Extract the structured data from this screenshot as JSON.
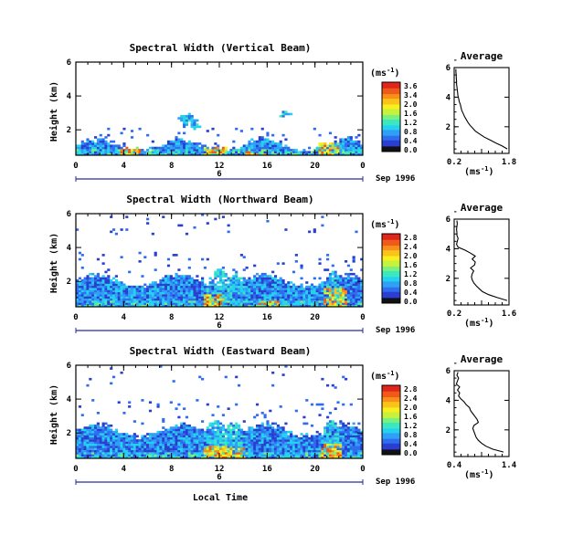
{
  "figure": {
    "xlabel": "Local Time",
    "date_label": "Sep 1996",
    "time_ticks": [
      "0",
      "4",
      "8",
      "12",
      "16",
      "20",
      "0"
    ],
    "day_labels": [
      "6",
      "6",
      "6"
    ],
    "colorbar_unit": "(ms",
    "colorbar_unit_sup": "-1",
    "colorbar_unit_close": ")",
    "avg_xunit": "(ms",
    "avg_xunit_sup": "-1",
    "avg_xunit_close": ")"
  },
  "palette": [
    "#1a1a6e",
    "#2a3fd0",
    "#2f6df0",
    "#2fa0f5",
    "#24d2f0",
    "#3be8c0",
    "#7cf07a",
    "#c6f23e",
    "#f5f01e",
    "#f9c31a",
    "#f78f1a",
    "#ef5a1a",
    "#e0261a"
  ],
  "chart_data": [
    {
      "type": "heatmap",
      "title": "Spectral Width (Vertical Beam)",
      "ylabel": "Height (km)",
      "xlim": [
        0,
        24
      ],
      "ylim": [
        0.5,
        6
      ],
      "yticks": [
        "6",
        "4",
        "2"
      ],
      "colorbar_ticks": [
        "3.6",
        "3.4",
        "2.0",
        "1.6",
        "1.2",
        "0.8",
        "0.4",
        "0.0"
      ],
      "colorbar_range": [
        0,
        3.6
      ],
      "profile": {
        "title": "Average",
        "xlim": [
          0.2,
          1.8
        ],
        "xticks": [
          "0.2",
          "1.8"
        ],
        "yticks": [
          "6",
          "4",
          "2"
        ],
        "height_km": [
          0.5,
          0.7,
          0.9,
          1.1,
          1.3,
          1.5,
          1.7,
          1.9,
          2.1,
          2.3,
          2.5,
          2.7,
          2.9,
          3.1,
          3.3,
          3.5,
          3.7,
          3.9,
          4.1,
          4.3,
          4.5,
          4.7,
          4.9,
          5.1,
          5.3,
          5.5,
          5.7,
          5.9
        ],
        "width_ms": [
          1.75,
          1.6,
          1.42,
          1.25,
          1.08,
          0.95,
          0.82,
          0.74,
          0.66,
          0.6,
          0.55,
          0.5,
          0.46,
          0.42,
          0.4,
          0.38,
          0.35,
          0.33,
          0.31,
          0.3,
          0.29,
          0.28,
          0.27,
          0.27,
          0.26,
          0.26,
          0.25,
          0.25
        ]
      }
    },
    {
      "type": "heatmap",
      "title": "Spectral Width (Northward Beam)",
      "ylabel": "Height (km)",
      "xlim": [
        0,
        24
      ],
      "ylim": [
        0.5,
        6
      ],
      "yticks": [
        "6",
        "4",
        "2"
      ],
      "colorbar_ticks": [
        "2.8",
        "2.4",
        "2.0",
        "1.6",
        "1.2",
        "0.8",
        "0.4",
        "0.0"
      ],
      "colorbar_range": [
        0,
        2.8
      ],
      "profile": {
        "title": "Average",
        "xlim": [
          0.2,
          1.6
        ],
        "xticks": [
          "0.2",
          "1.6"
        ],
        "yticks": [
          "6",
          "4",
          "2"
        ],
        "height_km": [
          0.5,
          0.7,
          0.9,
          1.1,
          1.3,
          1.5,
          1.7,
          1.9,
          2.1,
          2.3,
          2.5,
          2.7,
          2.9,
          3.1,
          3.3,
          3.5,
          3.7,
          3.9,
          4.1,
          4.3,
          4.5,
          4.7,
          4.9,
          5.1,
          5.3,
          5.5,
          5.7,
          5.9
        ],
        "width_ms": [
          1.55,
          1.3,
          1.08,
          0.92,
          0.84,
          0.76,
          0.7,
          0.66,
          0.64,
          0.66,
          0.7,
          0.62,
          0.72,
          0.74,
          0.66,
          0.74,
          0.62,
          0.48,
          0.3,
          0.26,
          0.28,
          0.3,
          0.27,
          0.27,
          0.26,
          0.27,
          0.28,
          0.27
        ]
      }
    },
    {
      "type": "heatmap",
      "title": "Spectral Width (Eastward Beam)",
      "ylabel": "Height (km)",
      "xlim": [
        0,
        24
      ],
      "ylim": [
        0.5,
        6
      ],
      "yticks": [
        "6",
        "4",
        "2"
      ],
      "colorbar_ticks": [
        "2.8",
        "2.4",
        "2.0",
        "1.6",
        "1.2",
        "0.8",
        "0.4",
        "0.0"
      ],
      "colorbar_range": [
        0,
        2.8
      ],
      "profile": {
        "title": "Average",
        "xlim": [
          0.4,
          1.4
        ],
        "xticks": [
          "0.4",
          "1.4"
        ],
        "yticks": [
          "6",
          "4",
          "2"
        ],
        "height_km": [
          0.5,
          0.7,
          0.9,
          1.1,
          1.3,
          1.5,
          1.7,
          1.9,
          2.1,
          2.3,
          2.5,
          2.7,
          2.9,
          3.1,
          3.3,
          3.5,
          3.7,
          3.9,
          4.1,
          4.3,
          4.5,
          4.7,
          4.9,
          5.1,
          5.3,
          5.5,
          5.7,
          5.9
        ],
        "width_ms": [
          1.3,
          1.1,
          0.98,
          0.9,
          0.84,
          0.8,
          0.78,
          0.76,
          0.74,
          0.76,
          0.84,
          0.82,
          0.78,
          0.74,
          0.7,
          0.68,
          0.62,
          0.58,
          0.52,
          0.48,
          0.5,
          0.46,
          0.5,
          0.44,
          0.46,
          0.48,
          0.45,
          0.47
        ]
      }
    }
  ]
}
